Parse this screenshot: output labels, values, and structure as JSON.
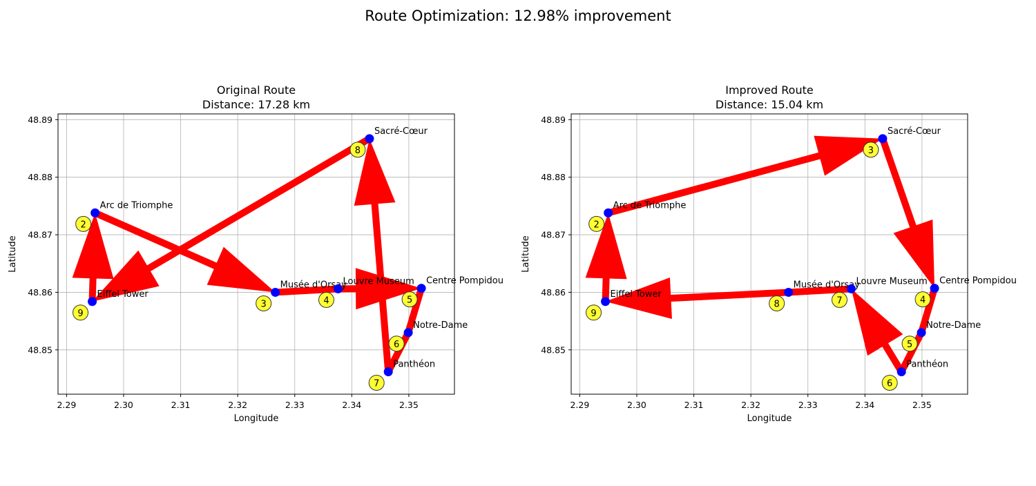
{
  "figure": {
    "suptitle": "Route Optimization: 12.98% improvement"
  },
  "colors": {
    "route": "#ff0000",
    "stop": "#0000ff",
    "badge_fill": "#ffff33",
    "badge_stroke": "#333333",
    "grid": "#b0b0b0"
  },
  "chart_data": [
    {
      "type": "scatter",
      "title": "Original Route",
      "subtitle": "Distance: 17.28 km",
      "xlabel": "Longitude",
      "ylabel": "Latitude",
      "xlim": [
        2.2885,
        2.358
      ],
      "ylim": [
        48.8423,
        48.891
      ],
      "xticks": [
        2.29,
        2.3,
        2.31,
        2.32,
        2.33,
        2.34,
        2.35
      ],
      "xtick_labels": [
        "2.29",
        "2.30",
        "2.31",
        "2.32",
        "2.33",
        "2.34",
        "2.35"
      ],
      "yticks": [
        48.85,
        48.86,
        48.87,
        48.88,
        48.89
      ],
      "ytick_labels": [
        "48.85",
        "48.86",
        "48.87",
        "48.88",
        "48.89"
      ],
      "grid": true,
      "locations": [
        {
          "name": "Eiffel Tower",
          "lon": 2.2945,
          "lat": 48.8584
        },
        {
          "name": "Arc de Triomphe",
          "lon": 2.295,
          "lat": 48.8738
        },
        {
          "name": "Musée d'Orsay",
          "lon": 2.3266,
          "lat": 48.86
        },
        {
          "name": "Louvre Museum",
          "lon": 2.3376,
          "lat": 48.8606
        },
        {
          "name": "Centre Pompidou",
          "lon": 2.3522,
          "lat": 48.8607
        },
        {
          "name": "Notre-Dame",
          "lon": 2.3499,
          "lat": 48.853
        },
        {
          "name": "Panthéon",
          "lon": 2.3464,
          "lat": 48.8462
        },
        {
          "name": "Sacré-Cœur",
          "lon": 2.3431,
          "lat": 48.8867
        }
      ],
      "route": [
        {
          "order": "2",
          "stop": "Arc de Triomphe"
        },
        {
          "order": "3",
          "stop": "Musée d'Orsay"
        },
        {
          "order": "4",
          "stop": "Louvre Museum"
        },
        {
          "order": "5",
          "stop": "Centre Pompidou"
        },
        {
          "order": "6",
          "stop": "Notre-Dame"
        },
        {
          "order": "7",
          "stop": "Panthéon"
        },
        {
          "order": "8",
          "stop": "Sacré-Cœur"
        },
        {
          "order": "9",
          "stop": "Eiffel Tower"
        }
      ],
      "start": "Eiffel Tower"
    },
    {
      "type": "scatter",
      "title": "Improved Route",
      "subtitle": "Distance: 15.04 km",
      "xlabel": "Longitude",
      "ylabel": "Latitude",
      "xlim": [
        2.2885,
        2.358
      ],
      "ylim": [
        48.8423,
        48.891
      ],
      "xticks": [
        2.29,
        2.3,
        2.31,
        2.32,
        2.33,
        2.34,
        2.35
      ],
      "xtick_labels": [
        "2.29",
        "2.30",
        "2.31",
        "2.32",
        "2.33",
        "2.34",
        "2.35"
      ],
      "yticks": [
        48.85,
        48.86,
        48.87,
        48.88,
        48.89
      ],
      "ytick_labels": [
        "48.85",
        "48.86",
        "48.87",
        "48.88",
        "48.89"
      ],
      "grid": true,
      "locations": [
        {
          "name": "Eiffel Tower",
          "lon": 2.2945,
          "lat": 48.8584
        },
        {
          "name": "Arc de Triomphe",
          "lon": 2.295,
          "lat": 48.8738
        },
        {
          "name": "Musée d'Orsay",
          "lon": 2.3266,
          "lat": 48.86
        },
        {
          "name": "Louvre Museum",
          "lon": 2.3376,
          "lat": 48.8606
        },
        {
          "name": "Centre Pompidou",
          "lon": 2.3522,
          "lat": 48.8607
        },
        {
          "name": "Notre-Dame",
          "lon": 2.3499,
          "lat": 48.853
        },
        {
          "name": "Panthéon",
          "lon": 2.3464,
          "lat": 48.8462
        },
        {
          "name": "Sacré-Cœur",
          "lon": 2.3431,
          "lat": 48.8867
        }
      ],
      "route": [
        {
          "order": "2",
          "stop": "Arc de Triomphe"
        },
        {
          "order": "3",
          "stop": "Sacré-Cœur"
        },
        {
          "order": "4",
          "stop": "Centre Pompidou"
        },
        {
          "order": "5",
          "stop": "Notre-Dame"
        },
        {
          "order": "6",
          "stop": "Panthéon"
        },
        {
          "order": "7",
          "stop": "Louvre Museum"
        },
        {
          "order": "8",
          "stop": "Musée d'Orsay"
        },
        {
          "order": "9",
          "stop": "Eiffel Tower"
        }
      ],
      "start": "Eiffel Tower"
    }
  ]
}
